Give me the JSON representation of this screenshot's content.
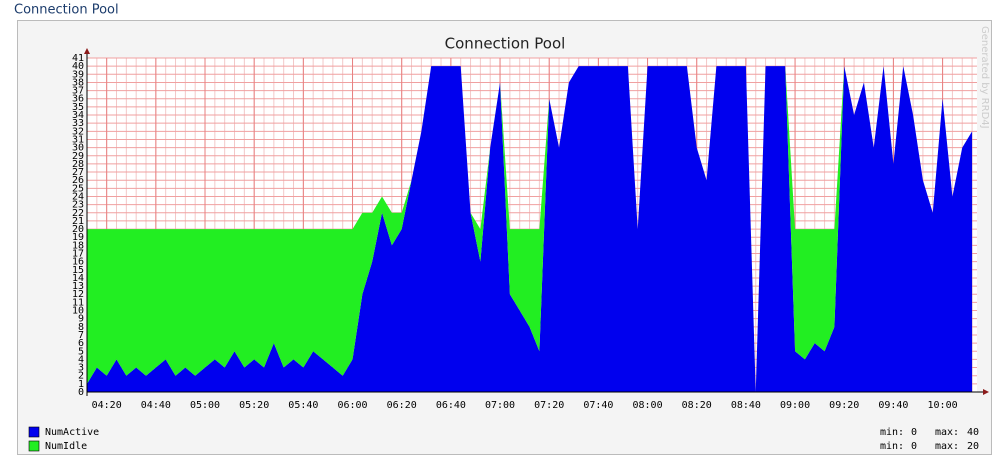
{
  "page_title": "Connection Pool",
  "chart_data": {
    "type": "stacked-area",
    "title": "Connection Pool",
    "watermark": "Generated by RRD4J",
    "x": [
      "04:12",
      "04:16",
      "04:20",
      "04:24",
      "04:28",
      "04:32",
      "04:36",
      "04:40",
      "04:44",
      "04:48",
      "04:52",
      "04:56",
      "05:00",
      "05:04",
      "05:08",
      "05:12",
      "05:16",
      "05:20",
      "05:24",
      "05:28",
      "05:32",
      "05:36",
      "05:40",
      "05:44",
      "05:48",
      "05:52",
      "05:56",
      "06:00",
      "06:04",
      "06:08",
      "06:12",
      "06:16",
      "06:20",
      "06:24",
      "06:28",
      "06:32",
      "06:36",
      "06:40",
      "06:44",
      "06:48",
      "06:52",
      "06:56",
      "07:00",
      "07:04",
      "07:08",
      "07:12",
      "07:16",
      "07:20",
      "07:24",
      "07:28",
      "07:32",
      "07:36",
      "07:40",
      "07:44",
      "07:48",
      "07:52",
      "07:56",
      "08:00",
      "08:04",
      "08:08",
      "08:12",
      "08:16",
      "08:20",
      "08:24",
      "08:28",
      "08:32",
      "08:36",
      "08:40",
      "08:44",
      "08:48",
      "08:52",
      "08:56",
      "09:00",
      "09:04",
      "09:08",
      "09:12",
      "09:16",
      "09:20",
      "09:24",
      "09:28",
      "09:32",
      "09:36",
      "09:40",
      "09:44",
      "09:48",
      "09:52",
      "09:56",
      "10:00",
      "10:04",
      "10:08",
      "10:12"
    ],
    "series": [
      {
        "name": "NumActive",
        "color": "#0000ee",
        "stats": [
          {
            "label": "min:",
            "value": 0
          },
          {
            "label": "max:",
            "value": 40
          }
        ],
        "values": [
          1,
          3,
          2,
          4,
          2,
          3,
          2,
          3,
          4,
          2,
          3,
          2,
          3,
          4,
          3,
          5,
          3,
          4,
          3,
          6,
          3,
          4,
          3,
          5,
          4,
          3,
          2,
          4,
          12,
          16,
          22,
          18,
          20,
          26,
          32,
          40,
          40,
          40,
          40,
          22,
          16,
          30,
          38,
          12,
          10,
          8,
          5,
          36,
          30,
          38,
          40,
          40,
          40,
          40,
          40,
          40,
          20,
          40,
          40,
          40,
          40,
          40,
          30,
          26,
          40,
          40,
          40,
          40,
          0,
          40,
          40,
          40,
          5,
          4,
          6,
          5,
          8,
          40,
          34,
          38,
          30,
          40,
          28,
          40,
          34,
          26,
          22,
          36,
          24,
          30,
          32
        ]
      },
      {
        "name": "NumIdle",
        "color": "#22ee22",
        "stats": [
          {
            "label": "min:",
            "value": 0
          },
          {
            "label": "max:",
            "value": 20
          }
        ],
        "values": [
          19,
          17,
          18,
          16,
          18,
          17,
          18,
          17,
          16,
          18,
          17,
          18,
          17,
          16,
          17,
          15,
          17,
          16,
          17,
          14,
          17,
          16,
          17,
          15,
          16,
          17,
          18,
          16,
          10,
          6,
          2,
          4,
          2,
          0,
          0,
          0,
          0,
          0,
          0,
          0,
          4,
          0,
          0,
          8,
          10,
          12,
          15,
          0,
          0,
          0,
          0,
          0,
          0,
          0,
          0,
          0,
          0,
          0,
          0,
          0,
          0,
          0,
          0,
          0,
          0,
          0,
          0,
          0,
          0,
          0,
          0,
          0,
          15,
          16,
          14,
          15,
          12,
          0,
          0,
          0,
          0,
          0,
          0,
          0,
          0,
          0,
          0,
          0,
          0,
          0,
          0
        ]
      }
    ],
    "xlim": [
      "04:12",
      "10:14"
    ],
    "xticks": [
      "04:20",
      "04:40",
      "05:00",
      "05:20",
      "05:40",
      "06:00",
      "06:20",
      "06:40",
      "07:00",
      "07:20",
      "07:40",
      "08:00",
      "08:20",
      "08:40",
      "09:00",
      "09:20",
      "09:40",
      "10:00"
    ],
    "ylim": [
      0,
      41
    ],
    "yticks": [
      0,
      1,
      2,
      3,
      4,
      5,
      6,
      7,
      8,
      9,
      10,
      11,
      12,
      13,
      14,
      15,
      16,
      17,
      18,
      19,
      20,
      21,
      22,
      23,
      24,
      25,
      26,
      27,
      28,
      29,
      30,
      31,
      32,
      33,
      34,
      35,
      36,
      37,
      38,
      39,
      40,
      41
    ],
    "grid": true
  }
}
